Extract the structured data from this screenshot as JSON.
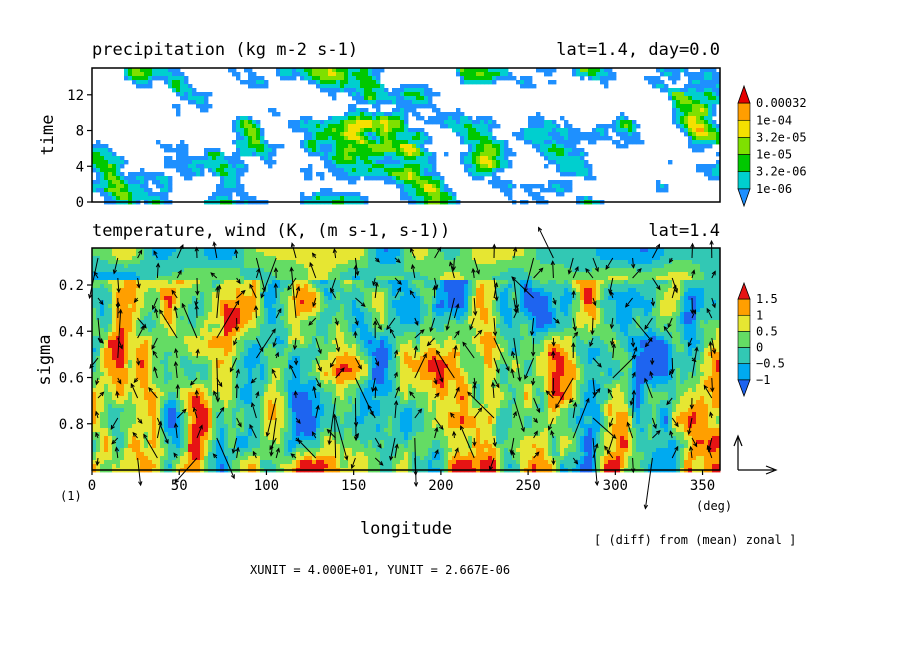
{
  "colors": {
    "background": "#ffffff",
    "axis": "#000000",
    "precip_levels": [
      "#ffffff",
      "#1e90ff",
      "#00cfcf",
      "#00c800",
      "#7fe000",
      "#f5e000",
      "#ff9e00",
      "#e60000"
    ],
    "temp_levels": [
      "#1e64f0",
      "#00aaf0",
      "#32c8b4",
      "#64dc64",
      "#e6e632",
      "#ff9f00",
      "#e61414"
    ]
  },
  "chart_data": [
    {
      "type": "heatmap",
      "title": "precipitation (kg m-2 s-1)",
      "subtitle": "lat=1.4, day=0.0",
      "ylabel": "time",
      "xlim": [
        0,
        360
      ],
      "ylim": [
        0,
        15
      ],
      "yticks": [
        0,
        4,
        8,
        12
      ],
      "colorbar": {
        "labels": [
          "0.00032",
          "1e-04",
          "3.2e-05",
          "1e-05",
          "3.2e-06",
          "1e-06"
        ]
      }
    },
    {
      "type": "heatmap",
      "title": "temperature, wind (K, (m s-1, s-1))",
      "subtitle": "lat=1.4",
      "xlabel": "longitude",
      "ylabel": "sigma",
      "xlim": [
        0,
        360
      ],
      "ylim": [
        1.0,
        0.04
      ],
      "xticks": [
        0,
        50,
        100,
        150,
        200,
        250,
        300,
        350
      ],
      "yticks": [
        0.2,
        0.4,
        0.6,
        0.8
      ],
      "xunit_label": "(deg)",
      "corner_label": "(1)",
      "note": "[ (diff) from (mean) zonal ]",
      "vector_units": "XUNIT = 4.000E+01, YUNIT = 2.667E-06",
      "colorbar": {
        "labels": [
          "1.5",
          "1",
          "0.5",
          "0",
          "−0.5",
          "−1"
        ]
      }
    }
  ]
}
